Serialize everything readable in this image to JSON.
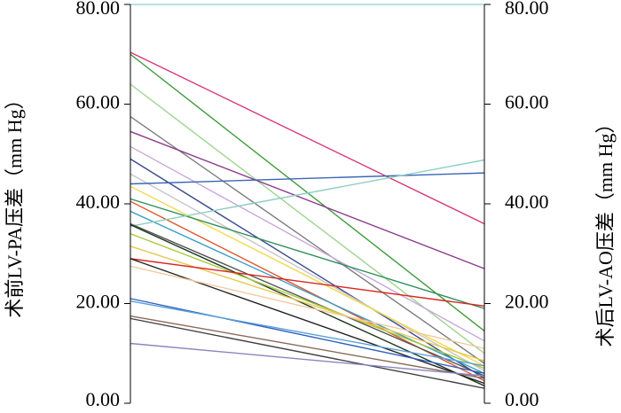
{
  "chart_data": {
    "type": "line",
    "title": "",
    "left_axis": {
      "label": "术前LV-PA压差（mm Hg）",
      "ylim": [
        0,
        80
      ],
      "ticks": [
        "0.00",
        "20.00",
        "40.00",
        "60.00",
        "80.00"
      ]
    },
    "right_axis": {
      "label": "术后LV-AO压差（mm Hg）",
      "ylim": [
        0,
        80
      ],
      "ticks": [
        "0.00",
        "20.00",
        "40.00",
        "60.00",
        "80.00"
      ]
    },
    "grid": false,
    "legend": "none",
    "series": [
      {
        "values": [
          80.0,
          80.0
        ],
        "color": "#9fd6cf"
      },
      {
        "values": [
          70.4,
          36.0
        ],
        "color": "#d6397a"
      },
      {
        "values": [
          70.0,
          14.5
        ],
        "color": "#3f9a3a"
      },
      {
        "values": [
          64.0,
          10.0
        ],
        "color": "#9ed48f"
      },
      {
        "values": [
          57.5,
          8.0
        ],
        "color": "#7d7d7d"
      },
      {
        "values": [
          54.5,
          27.0
        ],
        "color": "#8e3c8c"
      },
      {
        "values": [
          51.5,
          12.5
        ],
        "color": "#c9a8dc"
      },
      {
        "values": [
          49.0,
          5.0
        ],
        "color": "#3c4a8f"
      },
      {
        "values": [
          46.0,
          6.5
        ],
        "color": "#c7c7c7"
      },
      {
        "values": [
          44.0,
          46.2
        ],
        "color": "#3a66b5"
      },
      {
        "values": [
          43.5,
          7.5
        ],
        "color": "#f2d84a"
      },
      {
        "values": [
          41.0,
          19.0
        ],
        "color": "#2f8f5b"
      },
      {
        "values": [
          40.5,
          4.5
        ],
        "color": "#e0542a"
      },
      {
        "values": [
          38.5,
          6.0
        ],
        "color": "#3aa0c8"
      },
      {
        "values": [
          35.5,
          48.8
        ],
        "color": "#8ccfc0"
      },
      {
        "values": [
          36.0,
          5.5
        ],
        "color": "#555555"
      },
      {
        "values": [
          35.8,
          3.5
        ],
        "color": "#1e3a20"
      },
      {
        "values": [
          34.0,
          7.0
        ],
        "color": "#a8c83a"
      },
      {
        "values": [
          31.5,
          8.5
        ],
        "color": "#e8c850"
      },
      {
        "values": [
          29.0,
          19.5
        ],
        "color": "#d8261f"
      },
      {
        "values": [
          29.0,
          4.0
        ],
        "color": "#222222"
      },
      {
        "values": [
          27.5,
          11.0
        ],
        "color": "#f3c9a0"
      },
      {
        "values": [
          21.0,
          6.0
        ],
        "color": "#3260c0"
      },
      {
        "values": [
          20.5,
          7.5
        ],
        "color": "#5aa0d8"
      },
      {
        "values": [
          17.5,
          5.0
        ],
        "color": "#8a6a5a"
      },
      {
        "values": [
          17.0,
          3.0
        ],
        "color": "#404040"
      },
      {
        "values": [
          12.0,
          5.5
        ],
        "color": "#8a84c0"
      }
    ]
  }
}
